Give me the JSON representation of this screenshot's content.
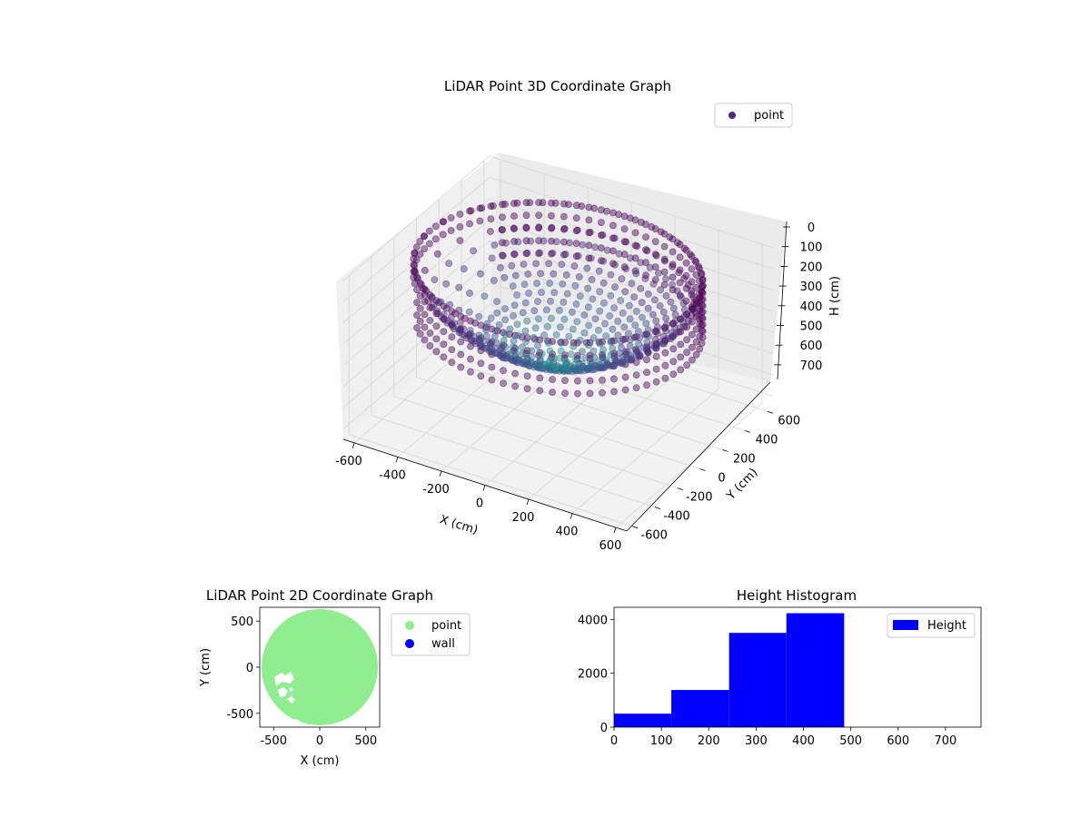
{
  "chart_data": [
    {
      "type": "scatter",
      "title": "LiDAR Point 3D Coordinate Graph",
      "xlabel": "X (cm)",
      "ylabel": "Y (cm)",
      "zlabel": "H (cm)",
      "xlim": [
        -650,
        650
      ],
      "ylim": [
        -650,
        650
      ],
      "zlim": [
        0,
        750
      ],
      "z_inverted": true,
      "xticks": [
        -600,
        -400,
        -200,
        0,
        200,
        400,
        600
      ],
      "yticks": [
        -600,
        -400,
        -200,
        0,
        200,
        400,
        600
      ],
      "zticks": [
        0,
        100,
        200,
        300,
        400,
        500,
        600,
        700
      ],
      "legend": {
        "placement": "upper-right",
        "entries": [
          {
            "label": "point",
            "color": "#472d7b"
          }
        ]
      },
      "colormap": "viridis",
      "series": [
        {
          "name": "point",
          "description_shape": "bowl",
          "outer_radius": 590,
          "rim_height": 40,
          "bottom_height": 480
        }
      ],
      "grid": true
    },
    {
      "type": "scatter",
      "title": "LiDAR Point 2D Coordinate Graph",
      "xlabel": "X (cm)",
      "ylabel": "Y (cm)",
      "xlim": [
        -650,
        650
      ],
      "ylim": [
        -650,
        650
      ],
      "xticks": [
        -500,
        0,
        500
      ],
      "yticks": [
        -500,
        0,
        500
      ],
      "legend": {
        "placement": "outside-right",
        "entries": [
          {
            "label": "point",
            "color": "#90ee90"
          },
          {
            "label": "wall",
            "color": "#0000ff"
          }
        ]
      },
      "series": [
        {
          "name": "point",
          "color": "#90ee90",
          "shape": "disk",
          "radius": 630
        },
        {
          "name": "wall",
          "color": "#0000ff",
          "points": []
        }
      ]
    },
    {
      "type": "bar",
      "title": "Height Histogram",
      "xlim": [
        0,
        775
      ],
      "ylim": [
        0,
        4450
      ],
      "xticks": [
        0,
        100,
        200,
        300,
        400,
        500,
        600,
        700
      ],
      "yticks": [
        0,
        2000,
        4000
      ],
      "legend": {
        "placement": "upper-right",
        "entries": [
          {
            "label": "Height",
            "color": "#0000ff"
          }
        ]
      },
      "series": [
        {
          "name": "Height",
          "color": "#0000ff",
          "bins": [
            {
              "x0": 0,
              "x1": 121,
              "value": 500
            },
            {
              "x0": 121,
              "x1": 243,
              "value": 1380
            },
            {
              "x0": 243,
              "x1": 364,
              "value": 3500
            },
            {
              "x0": 364,
              "x1": 486,
              "value": 4230
            },
            {
              "x0": 486,
              "x1": 607,
              "value": 0
            },
            {
              "x0": 607,
              "x1": 729,
              "value": 0
            }
          ]
        }
      ]
    }
  ]
}
